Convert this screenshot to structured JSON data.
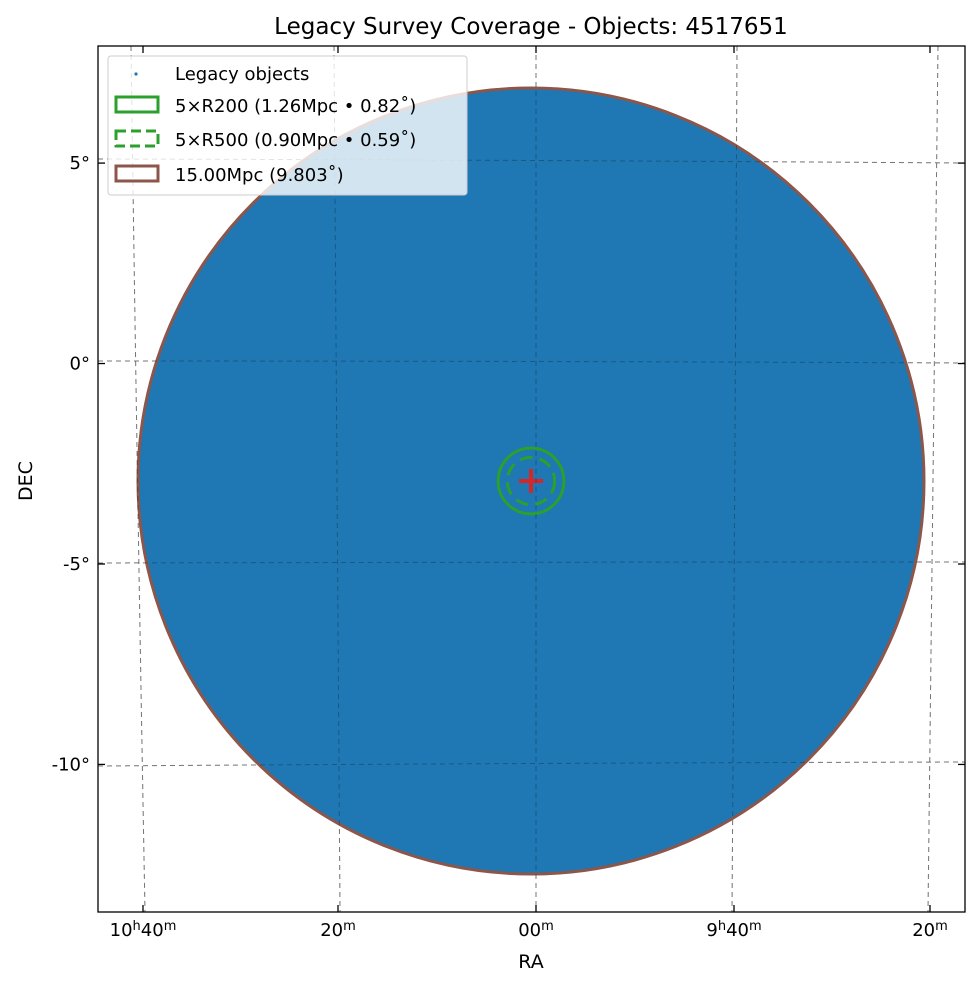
{
  "chart_data": {
    "type": "scatter",
    "title": "Legacy Survey Coverage - Objects: 4517651",
    "xlabel": "RA",
    "ylabel": "DEC",
    "x_tick_labels": [
      {
        "hours": "10",
        "minutes": "40"
      },
      {
        "hours": "",
        "minutes": "20"
      },
      {
        "hours": "",
        "minutes": "00"
      },
      {
        "hours": "9",
        "minutes": "40"
      },
      {
        "hours": "",
        "minutes": "20"
      }
    ],
    "y_tick_labels": [
      "5°",
      "0°",
      "-5°",
      "-10°"
    ],
    "y_ticks_deg": [
      5,
      0,
      -5,
      -10
    ],
    "ylim_deg": [
      -13.6,
      7.9
    ],
    "grid": true,
    "legend_placement": "top-left",
    "center": {
      "ra_deg": 150.0,
      "dec_deg": -2.93
    },
    "coverage_radius_deg": 9.803,
    "circles": [
      {
        "label": "5×R200 (1.26Mpc • 0.82˚)",
        "radius_deg": 0.82,
        "color": "#2ca02c",
        "style": "solid"
      },
      {
        "label": "5×R500 (0.90Mpc • 0.59˚)",
        "radius_deg": 0.59,
        "color": "#2ca02c",
        "style": "dashed"
      },
      {
        "label": "15.00Mpc (9.803˚)",
        "radius_deg": 9.803,
        "color": "#8c564b",
        "style": "solid"
      }
    ],
    "points_label": "Legacy objects",
    "objects_count": 4517651,
    "colors": {
      "points": "#1f77b4",
      "center_marker": "#d62728"
    }
  }
}
